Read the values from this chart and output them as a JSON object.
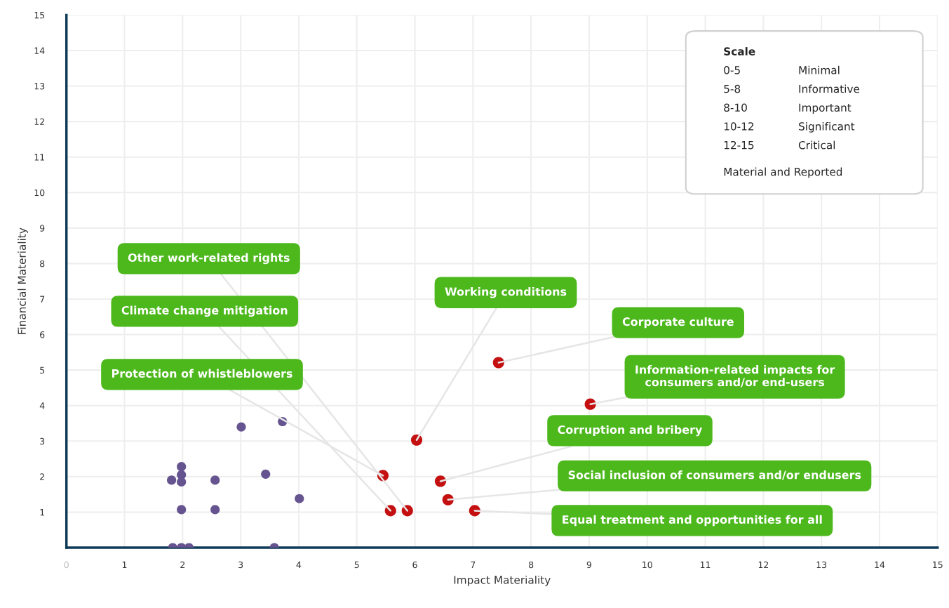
{
  "chart_data": {
    "type": "scatter",
    "xlabel": "Impact Materiality",
    "ylabel": "Financial Materiality",
    "series": [
      {
        "color": "#65548f",
        "x": [
          1.83,
          1.98,
          2.11,
          3.58,
          1.81,
          1.98,
          1.98,
          1.98,
          1.98,
          2.56,
          2.56,
          3.01,
          3.72,
          3.43,
          4.01
        ],
        "values": [
          0,
          0,
          0,
          0,
          1.9,
          2.28,
          2.05,
          1.85,
          1.07,
          1.9,
          1.07,
          3.4,
          3.55,
          2.07,
          1.38
        ]
      },
      {
        "color": "#c41010",
        "x": [
          5.45,
          5.58,
          5.87,
          6.03,
          6.44,
          6.57,
          7.03,
          7.44,
          9.02
        ],
        "values": [
          2.03,
          1.04,
          1.04,
          3.03,
          1.87,
          1.35,
          1.04,
          5.21,
          4.04
        ]
      }
    ],
    "xlim": [
      0,
      15
    ],
    "ylim": [
      0,
      15
    ],
    "xticks": [
      {
        "value": 0,
        "label": "0"
      },
      1,
      2,
      3,
      4,
      5,
      6,
      7,
      8,
      9,
      10,
      11,
      12,
      13,
      14,
      15
    ],
    "yticks": [
      {
        "value": 0,
        "label": null
      },
      1,
      2,
      3,
      4,
      5,
      6,
      7,
      8,
      9,
      10,
      11,
      12,
      13,
      14,
      15
    ],
    "grid": true,
    "annotations": [
      {
        "text": "Other work-related rights",
        "x": 5.87,
        "y": 1.04
      },
      {
        "text": "Climate change mitigation",
        "x": 5.58,
        "y": 1.04
      },
      {
        "text": "Protection of whistleblowers",
        "x": 5.45,
        "y": 2.03
      },
      {
        "text": "Working conditions",
        "x": 6.03,
        "y": 3.03
      },
      {
        "text": "Corporate culture",
        "x": 7.44,
        "y": 5.21
      },
      {
        "text": "Information-related impacts for\nconsumers and/or end-users",
        "x": 9.02,
        "y": 4.04
      },
      {
        "text": "Corruption and bribery",
        "x": 6.44,
        "y": 1.87
      },
      {
        "text": "Social inclusion of consumers and/or endusers",
        "x": 6.57,
        "y": 1.35
      },
      {
        "text": "Equal treatment and opportunities for all",
        "x": 7.03,
        "y": 1.04
      },
      "Scale",
      "0-5",
      "Minimal",
      "5-8",
      "Informative",
      "8-10",
      "Important",
      "10-12",
      "Significant",
      "12-15",
      "Critical",
      "Material and Reported"
    ]
  }
}
